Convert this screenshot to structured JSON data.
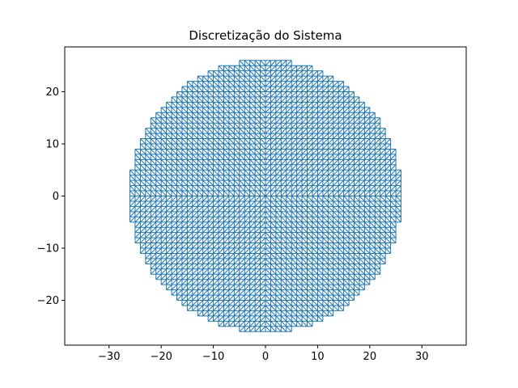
{
  "chart_data": {
    "type": "mesh",
    "title": "Discretização do Sistema",
    "xlabel": "",
    "ylabel": "",
    "xlim": [
      -38.5,
      38.5
    ],
    "ylim": [
      -28.6,
      28.6
    ],
    "x_ticks": [
      -30,
      -20,
      -10,
      0,
      10,
      20,
      30
    ],
    "x_tick_labels": [
      "−30",
      "−20",
      "−10",
      "0",
      "10",
      "20",
      "30"
    ],
    "y_ticks": [
      -20,
      -10,
      0,
      10,
      20
    ],
    "y_tick_labels": [
      "−20",
      "−10",
      "0",
      "10",
      "20"
    ],
    "grid": false,
    "mesh": {
      "element": "triangle",
      "shape": "disc",
      "radius": 26,
      "spacing": 1,
      "diagonal_direction": "toward-origin",
      "series": [
        {
          "color": "#1f77b4"
        }
      ]
    }
  }
}
